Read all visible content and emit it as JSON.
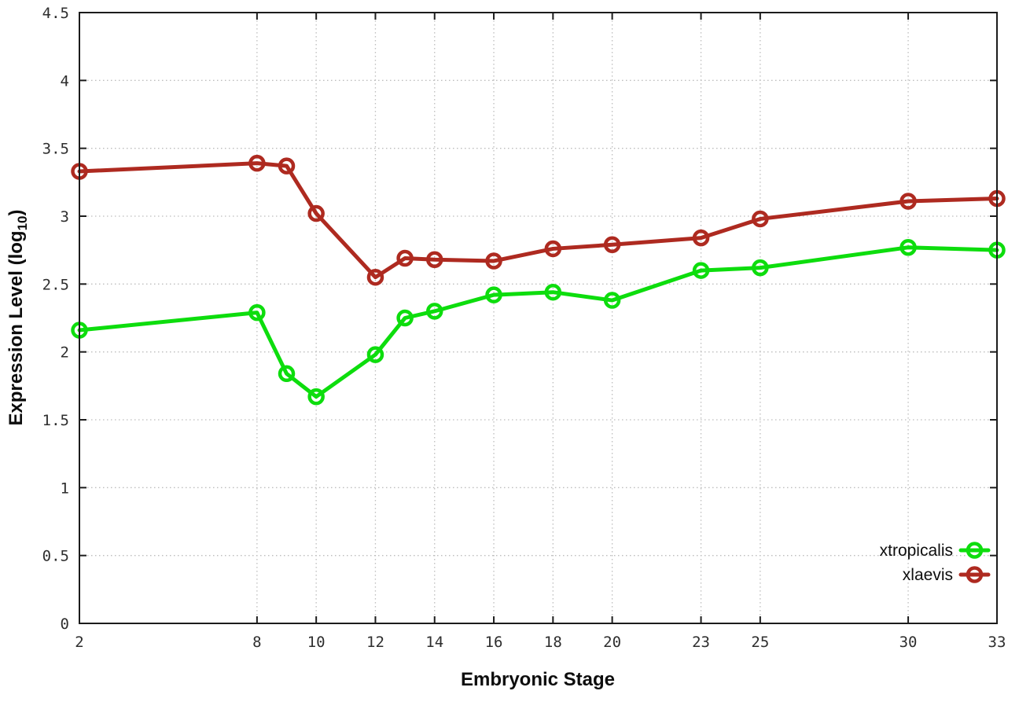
{
  "figure": {
    "background": "#ffffff",
    "border_color": "#1c1c1c",
    "grid_color": "#bdbdbd",
    "tick_label_color": "#2e2e2e"
  },
  "chart_data": {
    "type": "line",
    "title": "",
    "xlabel": "Embryonic Stage",
    "ylabel": "Expression Level (log10)",
    "ylabel_parts": {
      "main": "Expression Level (log",
      "sub": "10",
      "end": ")"
    },
    "xlim": [
      2,
      33
    ],
    "ylim": [
      0,
      4.5
    ],
    "x_ticks": [
      2,
      8,
      10,
      12,
      14,
      16,
      18,
      20,
      23,
      25,
      30,
      33
    ],
    "y_ticks": [
      0,
      0.5,
      1,
      1.5,
      2,
      2.5,
      3,
      3.5,
      4,
      4.5
    ],
    "grid": true,
    "legend_position": "bottom-right",
    "marker": "open-circle",
    "x": [
      2,
      8,
      9,
      10,
      12,
      13,
      14,
      16,
      18,
      20,
      23,
      25,
      30,
      33
    ],
    "series": [
      {
        "name": "xtropicalis",
        "color": "#0ddd0d",
        "values": [
          2.16,
          2.29,
          1.84,
          1.67,
          1.98,
          2.25,
          2.3,
          2.42,
          2.44,
          2.38,
          2.6,
          2.62,
          2.77,
          2.75
        ]
      },
      {
        "name": "xlaevis",
        "color": "#ae2a20",
        "values": [
          3.33,
          3.39,
          3.37,
          3.02,
          2.55,
          2.69,
          2.68,
          2.67,
          2.76,
          2.79,
          2.84,
          2.98,
          3.11,
          3.13
        ]
      }
    ]
  }
}
